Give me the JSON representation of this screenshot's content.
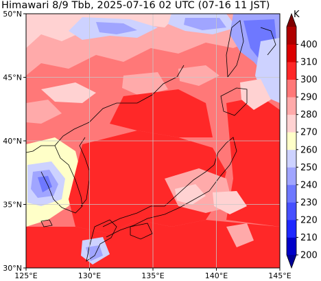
{
  "title": "Himawari 8/9 Tbb, 2025-07-16 02 UTC (07-16 11 JST)",
  "map": {
    "lon_range": [
      125,
      145
    ],
    "lat_range": [
      30,
      50
    ],
    "lon_ticks": [
      {
        "value": 125,
        "label": "125°E"
      },
      {
        "value": 130,
        "label": "130°E"
      },
      {
        "value": 135,
        "label": "135°E"
      },
      {
        "value": 140,
        "label": "140°E"
      },
      {
        "value": 145,
        "label": "145°E"
      }
    ],
    "lat_ticks": [
      {
        "value": 30,
        "label": "30°N"
      },
      {
        "value": 35,
        "label": "35°N"
      },
      {
        "value": 40,
        "label": "40°N"
      },
      {
        "value": 45,
        "label": "45°N"
      },
      {
        "value": 50,
        "label": "50°N"
      }
    ],
    "gridlines": true,
    "variable": "Tbb"
  },
  "colorbar": {
    "unit": "K",
    "levels": [
      200,
      210,
      220,
      230,
      240,
      250,
      260,
      270,
      280,
      290,
      300,
      310,
      400
    ],
    "tick_labels": [
      "200",
      "210",
      "220",
      "230",
      "240",
      "250",
      "260",
      "270",
      "280",
      "290",
      "300",
      "310",
      "400"
    ],
    "under_color": "#000096",
    "over_color": "#7d0000",
    "colors": [
      "#0000c8",
      "#1e28ff",
      "#4650ff",
      "#6e78ff",
      "#a0a5ff",
      "#cdd2ff",
      "#ffffc8",
      "#ffd2d2",
      "#ffaaaa",
      "#ff7878",
      "#ff2828",
      "#dc0000",
      "#af0000"
    ]
  }
}
